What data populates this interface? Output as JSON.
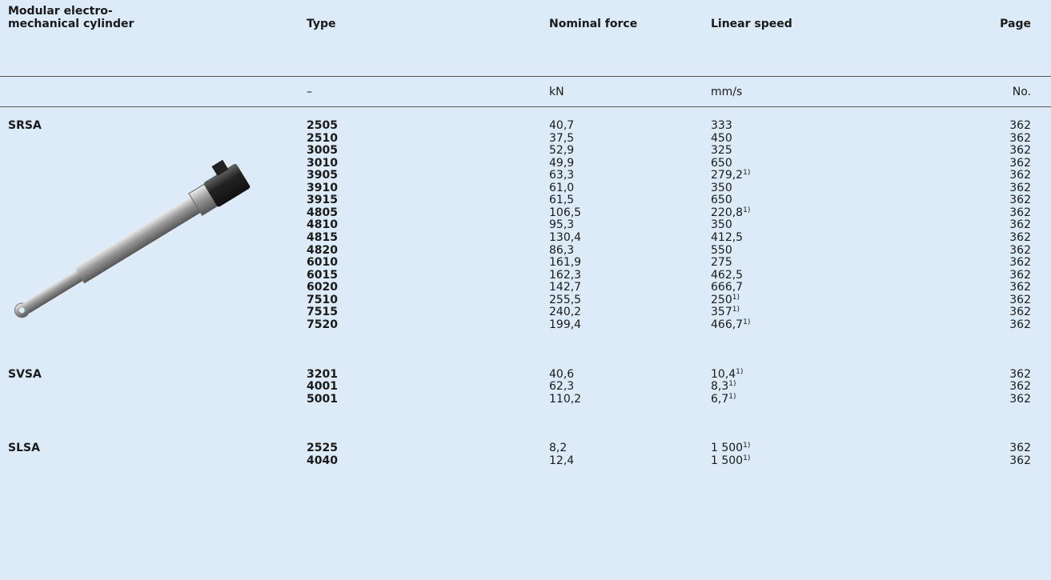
{
  "header": {
    "columns": [
      "Modular electro-\nmechanical cylinder",
      "Type",
      "Nominal force",
      "Linear speed",
      "Page"
    ],
    "units": [
      "–",
      "kN",
      "mm/s",
      "No."
    ]
  },
  "groups": [
    {
      "name": "SRSA",
      "rows": [
        {
          "type": "2505",
          "force": "40,7",
          "speed": "333",
          "page": "362"
        },
        {
          "type": "2510",
          "force": "37,5",
          "speed": "450",
          "page": "362"
        },
        {
          "type": "3005",
          "force": "52,9",
          "speed": "325",
          "page": "362"
        },
        {
          "type": "3010",
          "force": "49,9",
          "speed": "650",
          "page": "362"
        },
        {
          "type": "3905",
          "force": "63,3",
          "speed": "279,2",
          "note": "1)",
          "page": "362"
        },
        {
          "type": "3910",
          "force": "61,0",
          "speed": "350",
          "page": "362"
        },
        {
          "type": "3915",
          "force": "61,5",
          "speed": "650",
          "page": "362"
        },
        {
          "type": "4805",
          "force": "106,5",
          "speed": "220,8",
          "note": "1)",
          "page": "362"
        },
        {
          "type": "4810",
          "force": "95,3",
          "speed": "350",
          "page": "362"
        },
        {
          "type": "4815",
          "force": "130,4",
          "speed": "412,5",
          "page": "362"
        },
        {
          "type": "4820",
          "force": "86,3",
          "speed": "550",
          "page": "362"
        },
        {
          "type": "6010",
          "force": "161,9",
          "speed": "275",
          "page": "362"
        },
        {
          "type": "6015",
          "force": "162,3",
          "speed": "462,5",
          "page": "362"
        },
        {
          "type": "6020",
          "force": "142,7",
          "speed": "666,7",
          "page": "362"
        },
        {
          "type": "7510",
          "force": "255,5",
          "speed": "250",
          "note": "1)",
          "page": "362"
        },
        {
          "type": "7515",
          "force": "240,2",
          "speed": "357",
          "note": "1)",
          "page": "362"
        },
        {
          "type": "7520",
          "force": "199,4",
          "speed": "466,7",
          "note": "1)",
          "page": "362"
        }
      ]
    },
    {
      "name": "SVSA",
      "rows": [
        {
          "type": "3201",
          "force": "40,6",
          "speed": "10,4",
          "note": "1)",
          "page": "362"
        },
        {
          "type": "4001",
          "force": "62,3",
          "speed": "8,3",
          "note": "1)",
          "page": "362"
        },
        {
          "type": "5001",
          "force": "110,2",
          "speed": "6,7",
          "note": "1)",
          "page": "362"
        }
      ]
    },
    {
      "name": "SLSA",
      "rows": [
        {
          "type": "2525",
          "force": "8,2",
          "speed": "1 500",
          "note": "1)",
          "page": "362"
        },
        {
          "type": "4040",
          "force": "12,4",
          "speed": "1 500",
          "note": "1)",
          "page": "362"
        }
      ]
    }
  ]
}
